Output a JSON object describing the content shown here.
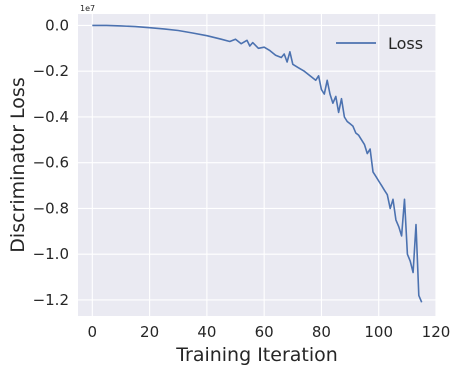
{
  "chart_data": {
    "type": "line",
    "title": "",
    "xlabel": "Training Iteration",
    "ylabel": "Discriminator Loss",
    "y_offset_label": "1e7",
    "xlim": [
      -5,
      120
    ],
    "ylim": [
      -1.27,
      0.05
    ],
    "x_ticks": [
      0,
      20,
      40,
      60,
      80,
      100,
      120
    ],
    "x_tick_labels": [
      "0",
      "20",
      "40",
      "60",
      "80",
      "100",
      "120"
    ],
    "y_ticks": [
      0.0,
      -0.2,
      -0.4,
      -0.6,
      -0.8,
      -1.0,
      -1.2
    ],
    "y_tick_labels": [
      "0.0",
      "−0.2",
      "−0.4",
      "−0.6",
      "−0.8",
      "−1.0",
      "−1.2"
    ],
    "grid": true,
    "legend_position": "top-right",
    "series": [
      {
        "name": "Loss",
        "color": "#4c72b0",
        "x": [
          0,
          5,
          10,
          15,
          20,
          25,
          30,
          35,
          40,
          45,
          48,
          50,
          52,
          54,
          55,
          56,
          58,
          60,
          62,
          64,
          66,
          67,
          68,
          69,
          70,
          72,
          74,
          76,
          78,
          79,
          80,
          81,
          82,
          83,
          84,
          85,
          86,
          87,
          88,
          89,
          90,
          91,
          92,
          93,
          94,
          95,
          96,
          97,
          98,
          99,
          100,
          101,
          102,
          103,
          104,
          105,
          106,
          107,
          108,
          109,
          110,
          111,
          112,
          113,
          114,
          115
        ],
        "y": [
          0.0,
          0.0,
          -0.002,
          -0.005,
          -0.01,
          -0.015,
          -0.022,
          -0.033,
          -0.045,
          -0.06,
          -0.07,
          -0.06,
          -0.08,
          -0.065,
          -0.09,
          -0.075,
          -0.1,
          -0.095,
          -0.11,
          -0.13,
          -0.14,
          -0.125,
          -0.16,
          -0.115,
          -0.17,
          -0.185,
          -0.2,
          -0.22,
          -0.24,
          -0.22,
          -0.28,
          -0.3,
          -0.24,
          -0.3,
          -0.34,
          -0.31,
          -0.38,
          -0.32,
          -0.4,
          -0.42,
          -0.43,
          -0.44,
          -0.47,
          -0.48,
          -0.5,
          -0.52,
          -0.56,
          -0.54,
          -0.64,
          -0.66,
          -0.68,
          -0.7,
          -0.72,
          -0.74,
          -0.8,
          -0.76,
          -0.85,
          -0.88,
          -0.92,
          -0.76,
          -1.0,
          -1.03,
          -1.08,
          -0.87,
          -1.18,
          -1.21
        ]
      }
    ]
  }
}
